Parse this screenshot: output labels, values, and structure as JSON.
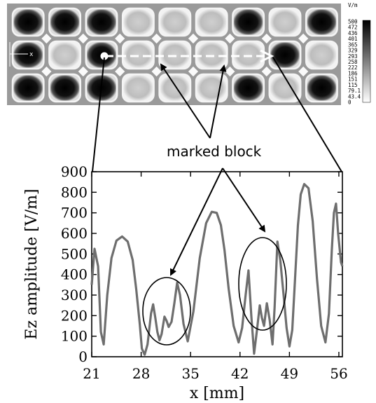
{
  "field_map": {
    "unit": "V/m",
    "colorbar_labels": [
      "500",
      "472",
      "436",
      "401",
      "365",
      "329",
      "293",
      "258",
      "222",
      "186",
      "151",
      "115",
      "79.1",
      "43.4",
      "0"
    ],
    "axis_marker": "x"
  },
  "annotation": {
    "text": "marked block"
  },
  "chart_data": {
    "type": "line",
    "xlabel": "x [mm]",
    "ylabel": "Ez amplitude [V/m]",
    "xlim": [
      21,
      56.5
    ],
    "ylim": [
      0,
      900
    ],
    "xticks": [
      21,
      28,
      35,
      42,
      49,
      56
    ],
    "yticks": [
      0,
      100,
      200,
      300,
      400,
      500,
      600,
      700,
      800,
      900
    ],
    "grid": false,
    "series": [
      {
        "color": "#6e6e6e",
        "x": [
          21.0,
          21.4,
          21.9,
          22.3,
          22.7,
          23.2,
          23.8,
          24.5,
          25.3,
          26.1,
          26.8,
          27.3,
          27.8,
          28.1,
          28.5,
          28.9,
          29.4,
          29.7,
          30.0,
          30.3,
          30.6,
          30.9,
          31.3,
          31.6,
          31.9,
          32.3,
          32.7,
          33.1,
          33.5,
          34.0,
          34.6,
          35.4,
          36.3,
          37.2,
          38.0,
          38.7,
          39.3,
          39.8,
          40.4,
          41.1,
          41.8,
          42.3,
          42.8,
          43.2,
          43.6,
          44.0,
          44.4,
          44.8,
          45.1,
          45.4,
          45.8,
          46.2,
          46.6,
          46.9,
          47.3,
          47.7,
          48.2,
          48.6,
          49.0,
          49.4,
          49.8,
          50.2,
          50.6,
          51.1,
          51.7,
          52.3,
          52.9,
          53.5,
          54.1,
          54.6,
          55.0,
          55.3,
          55.6,
          55.9,
          56.3,
          56.5
        ],
        "y": [
          350,
          525,
          440,
          120,
          60,
          300,
          480,
          565,
          585,
          560,
          470,
          330,
          160,
          40,
          10,
          60,
          210,
          255,
          190,
          120,
          80,
          110,
          195,
          175,
          145,
          170,
          260,
          360,
          300,
          160,
          75,
          220,
          480,
          650,
          705,
          700,
          640,
          520,
          330,
          150,
          70,
          140,
          300,
          420,
          200,
          15,
          130,
          250,
          190,
          150,
          260,
          180,
          60,
          240,
          560,
          470,
          290,
          140,
          50,
          130,
          380,
          640,
          790,
          840,
          820,
          660,
          380,
          150,
          70,
          210,
          520,
          700,
          745,
          600,
          460,
          440
        ]
      }
    ]
  }
}
